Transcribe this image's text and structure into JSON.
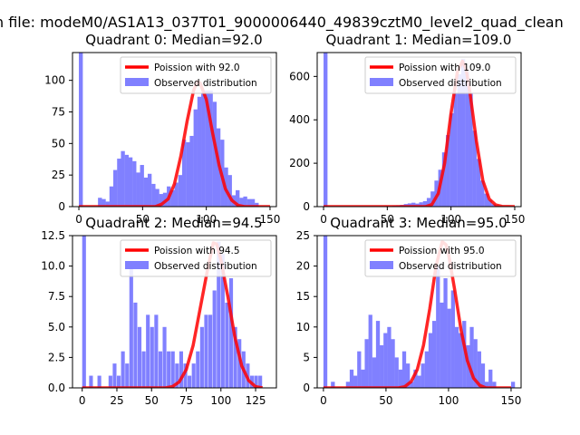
{
  "figure": {
    "suptitle": "n file: modeM0/AS1A13_037T01_9000006440_49839cztM0_level2_quad_clean"
  },
  "colors": {
    "hist": "#8080ff",
    "poisson": "#ff0000",
    "axes": "#000000",
    "background": "#ffffff"
  },
  "chart_data": [
    {
      "type": "bar",
      "title": "Quadrant 0: Median=92.0",
      "xlim": [
        -5,
        155
      ],
      "ylim": [
        0,
        122
      ],
      "xticks": [
        0,
        50,
        100,
        150
      ],
      "yticks": [
        0,
        25,
        50,
        75,
        100
      ],
      "legend_position": "top-right",
      "legend": [
        "Poission with 92.0",
        "Observed distribution"
      ],
      "hist": {
        "name": "Observed distribution",
        "bin_width": 3.1,
        "bins": [
          {
            "x": 0,
            "count": 122
          },
          {
            "x": 15,
            "count": 7
          },
          {
            "x": 18,
            "count": 6
          },
          {
            "x": 21,
            "count": 4
          },
          {
            "x": 24,
            "count": 16
          },
          {
            "x": 27,
            "count": 29
          },
          {
            "x": 30,
            "count": 38
          },
          {
            "x": 33,
            "count": 44
          },
          {
            "x": 36,
            "count": 41
          },
          {
            "x": 39,
            "count": 39
          },
          {
            "x": 42,
            "count": 36
          },
          {
            "x": 45,
            "count": 27
          },
          {
            "x": 48,
            "count": 33
          },
          {
            "x": 51,
            "count": 23
          },
          {
            "x": 54,
            "count": 26
          },
          {
            "x": 57,
            "count": 18
          },
          {
            "x": 60,
            "count": 14
          },
          {
            "x": 63,
            "count": 10
          },
          {
            "x": 66,
            "count": 11
          },
          {
            "x": 69,
            "count": 16
          },
          {
            "x": 72,
            "count": 13
          },
          {
            "x": 75,
            "count": 19
          },
          {
            "x": 78,
            "count": 25
          },
          {
            "x": 81,
            "count": 53
          },
          {
            "x": 84,
            "count": 51
          },
          {
            "x": 87,
            "count": 56
          },
          {
            "x": 90,
            "count": 77
          },
          {
            "x": 93,
            "count": 87
          },
          {
            "x": 96,
            "count": 90
          },
          {
            "x": 99,
            "count": 92
          },
          {
            "x": 102,
            "count": 92
          },
          {
            "x": 105,
            "count": 83
          },
          {
            "x": 108,
            "count": 62
          },
          {
            "x": 111,
            "count": 53
          },
          {
            "x": 114,
            "count": 31
          },
          {
            "x": 117,
            "count": 25
          },
          {
            "x": 120,
            "count": 9
          },
          {
            "x": 123,
            "count": 13
          },
          {
            "x": 126,
            "count": 7
          },
          {
            "x": 129,
            "count": 8
          },
          {
            "x": 132,
            "count": 6
          },
          {
            "x": 135,
            "count": 6
          },
          {
            "x": 138,
            "count": 3
          }
        ]
      },
      "poisson": {
        "name": "Poission with 92.0",
        "points": [
          [
            0,
            0
          ],
          [
            60,
            0
          ],
          [
            65,
            2
          ],
          [
            70,
            6
          ],
          [
            75,
            18
          ],
          [
            80,
            40
          ],
          [
            85,
            68
          ],
          [
            90,
            92
          ],
          [
            93,
            99
          ],
          [
            95,
            98
          ],
          [
            100,
            85
          ],
          [
            105,
            58
          ],
          [
            110,
            33
          ],
          [
            115,
            14
          ],
          [
            120,
            5
          ],
          [
            125,
            1
          ],
          [
            130,
            0
          ],
          [
            150,
            0
          ]
        ]
      }
    },
    {
      "type": "bar",
      "title": "Quadrant 1: Median=109.0",
      "xlim": [
        -5,
        155
      ],
      "ylim": [
        0,
        710
      ],
      "xticks": [
        0,
        50,
        100,
        150
      ],
      "yticks": [
        0,
        200,
        400,
        600
      ],
      "legend_position": "top-right",
      "legend": [
        "Poission with 109.0",
        "Observed distribution"
      ],
      "hist": {
        "name": "Observed distribution",
        "bin_width": 3.1,
        "bins": [
          {
            "x": 0,
            "count": 710
          },
          {
            "x": 48,
            "count": 3
          },
          {
            "x": 51,
            "count": 2
          },
          {
            "x": 54,
            "count": 4
          },
          {
            "x": 57,
            "count": 6
          },
          {
            "x": 60,
            "count": 8
          },
          {
            "x": 63,
            "count": 12
          },
          {
            "x": 66,
            "count": 15
          },
          {
            "x": 69,
            "count": 18
          },
          {
            "x": 72,
            "count": 14
          },
          {
            "x": 75,
            "count": 20
          },
          {
            "x": 78,
            "count": 25
          },
          {
            "x": 81,
            "count": 40
          },
          {
            "x": 84,
            "count": 70
          },
          {
            "x": 87,
            "count": 120
          },
          {
            "x": 90,
            "count": 170
          },
          {
            "x": 93,
            "count": 250
          },
          {
            "x": 96,
            "count": 330
          },
          {
            "x": 99,
            "count": 430
          },
          {
            "x": 102,
            "count": 520
          },
          {
            "x": 105,
            "count": 610
          },
          {
            "x": 108,
            "count": 680
          },
          {
            "x": 111,
            "count": 620
          },
          {
            "x": 114,
            "count": 520
          },
          {
            "x": 117,
            "count": 350
          },
          {
            "x": 120,
            "count": 220
          },
          {
            "x": 123,
            "count": 120
          },
          {
            "x": 126,
            "count": 60
          },
          {
            "x": 129,
            "count": 30
          },
          {
            "x": 132,
            "count": 12
          },
          {
            "x": 135,
            "count": 5
          },
          {
            "x": 138,
            "count": 3
          }
        ]
      },
      "poisson": {
        "name": "Poission with 109.0",
        "points": [
          [
            0,
            0
          ],
          [
            80,
            0
          ],
          [
            85,
            10
          ],
          [
            90,
            60
          ],
          [
            95,
            200
          ],
          [
            100,
            430
          ],
          [
            105,
            620
          ],
          [
            109,
            670
          ],
          [
            112,
            630
          ],
          [
            115,
            520
          ],
          [
            120,
            300
          ],
          [
            125,
            120
          ],
          [
            130,
            35
          ],
          [
            135,
            8
          ],
          [
            140,
            1
          ],
          [
            150,
            0
          ]
        ]
      }
    },
    {
      "type": "bar",
      "title": "Quadrant 2: Median=94.5",
      "xlim": [
        -7,
        140
      ],
      "ylim": [
        0,
        12.5
      ],
      "xticks": [
        0,
        25,
        50,
        75,
        100,
        125
      ],
      "yticks": [
        0.0,
        2.5,
        5.0,
        7.5,
        10.0,
        12.5
      ],
      "legend_position": "top-right",
      "legend": [
        "Poission with 94.5",
        "Observed distribution"
      ],
      "hist": {
        "name": "Observed distribution",
        "bin_width": 2.7,
        "bins": [
          {
            "x": 0,
            "count": 12.5
          },
          {
            "x": 5,
            "count": 1
          },
          {
            "x": 11,
            "count": 1
          },
          {
            "x": 19,
            "count": 1
          },
          {
            "x": 22,
            "count": 2
          },
          {
            "x": 25,
            "count": 1
          },
          {
            "x": 28,
            "count": 3
          },
          {
            "x": 31,
            "count": 2
          },
          {
            "x": 34,
            "count": 10
          },
          {
            "x": 37,
            "count": 7
          },
          {
            "x": 40,
            "count": 5
          },
          {
            "x": 43,
            "count": 3
          },
          {
            "x": 46,
            "count": 6
          },
          {
            "x": 49,
            "count": 5
          },
          {
            "x": 52,
            "count": 6
          },
          {
            "x": 55,
            "count": 3
          },
          {
            "x": 58,
            "count": 5
          },
          {
            "x": 61,
            "count": 3
          },
          {
            "x": 64,
            "count": 3
          },
          {
            "x": 67,
            "count": 2
          },
          {
            "x": 70,
            "count": 3
          },
          {
            "x": 73,
            "count": 2
          },
          {
            "x": 76,
            "count": 1
          },
          {
            "x": 79,
            "count": 2
          },
          {
            "x": 82,
            "count": 3
          },
          {
            "x": 85,
            "count": 5
          },
          {
            "x": 88,
            "count": 6
          },
          {
            "x": 91,
            "count": 6
          },
          {
            "x": 94,
            "count": 8
          },
          {
            "x": 97,
            "count": 12
          },
          {
            "x": 100,
            "count": 11
          },
          {
            "x": 103,
            "count": 7
          },
          {
            "x": 106,
            "count": 9
          },
          {
            "x": 109,
            "count": 5
          },
          {
            "x": 112,
            "count": 4
          },
          {
            "x": 115,
            "count": 3
          },
          {
            "x": 118,
            "count": 2
          },
          {
            "x": 121,
            "count": 1
          },
          {
            "x": 124,
            "count": 1
          },
          {
            "x": 127,
            "count": 1
          }
        ]
      },
      "poisson": {
        "name": "Poission with 94.5",
        "points": [
          [
            0,
            0
          ],
          [
            60,
            0
          ],
          [
            65,
            0.1
          ],
          [
            70,
            0.5
          ],
          [
            75,
            1.5
          ],
          [
            80,
            3.5
          ],
          [
            85,
            6.5
          ],
          [
            90,
            9.5
          ],
          [
            94.5,
            11.9
          ],
          [
            97,
            11.8
          ],
          [
            100,
            10.5
          ],
          [
            105,
            7.5
          ],
          [
            110,
            4.2
          ],
          [
            115,
            1.8
          ],
          [
            120,
            0.6
          ],
          [
            125,
            0.1
          ],
          [
            130,
            0
          ]
        ]
      }
    },
    {
      "type": "bar",
      "title": "Quadrant 3: Median=95.0",
      "xlim": [
        -5,
        158
      ],
      "ylim": [
        0,
        25
      ],
      "xticks": [
        0,
        50,
        100,
        150
      ],
      "yticks": [
        0,
        5,
        10,
        15,
        20,
        25
      ],
      "legend_position": "top-right",
      "legend": [
        "Poission with 95.0",
        "Observed distribution"
      ],
      "hist": {
        "name": "Observed distribution",
        "bin_width": 3.1,
        "bins": [
          {
            "x": 0,
            "count": 25
          },
          {
            "x": 6,
            "count": 1
          },
          {
            "x": 18,
            "count": 1
          },
          {
            "x": 21,
            "count": 3
          },
          {
            "x": 24,
            "count": 2
          },
          {
            "x": 27,
            "count": 6
          },
          {
            "x": 30,
            "count": 3
          },
          {
            "x": 33,
            "count": 8
          },
          {
            "x": 36,
            "count": 12
          },
          {
            "x": 39,
            "count": 5
          },
          {
            "x": 42,
            "count": 11
          },
          {
            "x": 45,
            "count": 7
          },
          {
            "x": 48,
            "count": 9
          },
          {
            "x": 51,
            "count": 10
          },
          {
            "x": 54,
            "count": 8
          },
          {
            "x": 57,
            "count": 5
          },
          {
            "x": 60,
            "count": 3
          },
          {
            "x": 63,
            "count": 6
          },
          {
            "x": 66,
            "count": 4
          },
          {
            "x": 69,
            "count": 1
          },
          {
            "x": 72,
            "count": 3
          },
          {
            "x": 75,
            "count": 2
          },
          {
            "x": 78,
            "count": 4
          },
          {
            "x": 81,
            "count": 6
          },
          {
            "x": 84,
            "count": 9
          },
          {
            "x": 87,
            "count": 11
          },
          {
            "x": 90,
            "count": 20
          },
          {
            "x": 93,
            "count": 14
          },
          {
            "x": 96,
            "count": 18
          },
          {
            "x": 99,
            "count": 13
          },
          {
            "x": 102,
            "count": 16
          },
          {
            "x": 105,
            "count": 10
          },
          {
            "x": 108,
            "count": 9
          },
          {
            "x": 111,
            "count": 11
          },
          {
            "x": 114,
            "count": 7
          },
          {
            "x": 117,
            "count": 10
          },
          {
            "x": 120,
            "count": 8
          },
          {
            "x": 123,
            "count": 6
          },
          {
            "x": 126,
            "count": 4
          },
          {
            "x": 129,
            "count": 1
          },
          {
            "x": 132,
            "count": 3
          },
          {
            "x": 135,
            "count": 1
          },
          {
            "x": 150,
            "count": 1
          }
        ]
      },
      "poisson": {
        "name": "Poission with 95.0",
        "points": [
          [
            0,
            0
          ],
          [
            60,
            0
          ],
          [
            65,
            0.2
          ],
          [
            70,
            1
          ],
          [
            75,
            3
          ],
          [
            80,
            7
          ],
          [
            85,
            13
          ],
          [
            90,
            20
          ],
          [
            95,
            24
          ],
          [
            98,
            23.5
          ],
          [
            100,
            22
          ],
          [
            105,
            16
          ],
          [
            110,
            9.5
          ],
          [
            115,
            4.5
          ],
          [
            120,
            1.6
          ],
          [
            125,
            0.4
          ],
          [
            130,
            0
          ],
          [
            150,
            0
          ]
        ]
      }
    }
  ]
}
